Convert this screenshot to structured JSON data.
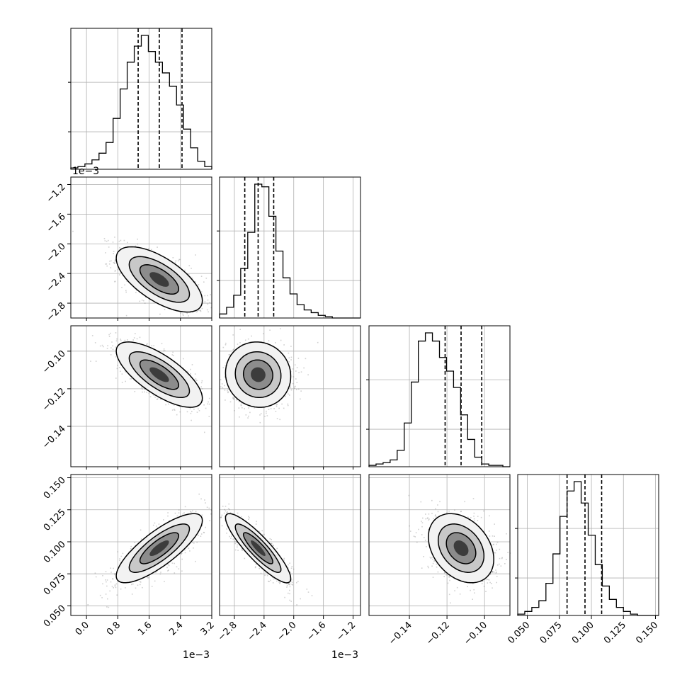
{
  "chart_data": {
    "type": "corner",
    "grid": true,
    "params": [
      {
        "id": "p1",
        "range": [
          -0.0004,
          0.0032
        ],
        "ticks": [
          0.0,
          0.8,
          1.6,
          2.4,
          3.2
        ],
        "tick_labels": [
          "0.0",
          "0.8",
          "1.6",
          "2.4",
          "3.2"
        ],
        "offset_label": "1e−3",
        "quantiles": [
          0.00132,
          0.00186,
          0.00244
        ]
      },
      {
        "id": "p2",
        "range": [
          -0.003,
          -0.0011
        ],
        "ticks": [
          -2.8,
          -2.4,
          -2.0,
          -1.6,
          -1.2
        ],
        "tick_labels": [
          "−2.8",
          "−2.4",
          "−2.0",
          "−1.6",
          "−1.2"
        ],
        "offset_label": "1e−3",
        "quantiles": [
          -0.00266,
          -0.00248,
          -0.00227
        ]
      },
      {
        "id": "p3",
        "range": [
          -0.1615,
          -0.0865
        ],
        "ticks": [
          -0.14,
          -0.12,
          -0.1
        ],
        "tick_labels": [
          "−0.14",
          "−0.12",
          "−0.10"
        ],
        "quantiles": [
          -0.121,
          -0.1125,
          -0.1015
        ]
      },
      {
        "id": "p4",
        "range": [
          0.0425,
          0.1525
        ],
        "ticks": [
          0.05,
          0.075,
          0.1,
          0.125,
          0.15
        ],
        "tick_labels": [
          "0.050",
          "0.075",
          "0.100",
          "0.125",
          "0.150"
        ],
        "quantiles": [
          0.081,
          0.095,
          0.108
        ]
      }
    ],
    "histograms": [
      [
        1,
        2,
        4,
        7,
        12,
        20,
        38,
        60,
        80,
        92,
        100,
        88,
        80,
        72,
        62,
        48,
        30,
        16,
        6,
        2
      ],
      [
        3,
        8,
        17,
        37,
        64,
        100,
        98,
        76,
        50,
        30,
        18,
        10,
        6,
        4,
        2,
        1,
        0,
        0,
        0,
        0
      ],
      [
        1,
        2,
        3,
        5,
        12,
        32,
        62,
        92,
        98,
        92,
        80,
        70,
        58,
        38,
        20,
        7,
        2,
        1,
        1,
        0
      ],
      [
        1,
        3,
        6,
        11,
        24,
        46,
        74,
        93,
        100,
        84,
        60,
        38,
        22,
        12,
        6,
        3,
        1,
        0,
        0,
        0
      ]
    ],
    "pairs": [
      {
        "x": 0,
        "y": 1,
        "mean": [
          0.00186,
          -0.00248
        ],
        "sd": [
          0.00055,
          0.00022
        ],
        "rho": -0.65
      },
      {
        "x": 0,
        "y": 2,
        "mean": [
          0.00186,
          -0.1125
        ],
        "sd": [
          0.00055,
          0.0087
        ],
        "rho": -0.72
      },
      {
        "x": 1,
        "y": 2,
        "mean": [
          -0.00248,
          -0.1125
        ],
        "sd": [
          0.00022,
          0.0087
        ],
        "rho": -0.05
      },
      {
        "x": 0,
        "y": 3,
        "mean": [
          0.00186,
          0.095
        ],
        "sd": [
          0.00055,
          0.0135
        ],
        "rho": 0.8
      },
      {
        "x": 1,
        "y": 3,
        "mean": [
          -0.00248,
          0.095
        ],
        "sd": [
          0.00022,
          0.0135
        ],
        "rho": -0.88
      },
      {
        "x": 2,
        "y": 3,
        "mean": [
          -0.1125,
          0.095
        ],
        "sd": [
          0.0087,
          0.0135
        ],
        "rho": -0.32
      }
    ]
  }
}
